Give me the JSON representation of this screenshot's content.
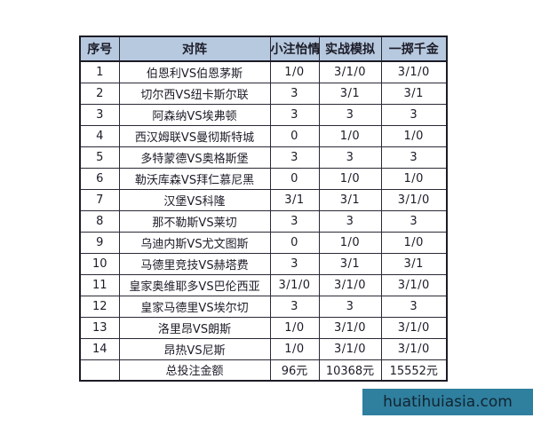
{
  "colors": {
    "page_bg": "#ffffff",
    "header_bg": "#b7c9df",
    "row_bg": "#ffffff",
    "grid_border": "#2a2a36",
    "outer_border": "#1c1c26",
    "text": "#1c1c28",
    "watermark_bg": "#2f7f9f",
    "watermark_text": "#112530"
  },
  "watermark": {
    "text": "huatihuiasia.com"
  },
  "table": {
    "headers": [
      "序号",
      "对阵",
      "小注怡情",
      "实战模拟",
      "一掷千金"
    ],
    "rows": [
      {
        "no": "1",
        "match": "伯恩利VS伯恩茅斯",
        "small": "1/0",
        "sim": "3/1/0",
        "big": "3/1/0"
      },
      {
        "no": "2",
        "match": "切尔西VS纽卡斯尔联",
        "small": "3",
        "sim": "3/1",
        "big": "3/1"
      },
      {
        "no": "3",
        "match": "阿森纳VS埃弗顿",
        "small": "3",
        "sim": "3",
        "big": "3"
      },
      {
        "no": "4",
        "match": "西汉姆联VS曼彻斯特城",
        "small": "0",
        "sim": "1/0",
        "big": "1/0"
      },
      {
        "no": "5",
        "match": "多特蒙德VS奥格斯堡",
        "small": "3",
        "sim": "3",
        "big": "3"
      },
      {
        "no": "6",
        "match": "勒沃库森VS拜仁慕尼黑",
        "small": "0",
        "sim": "1/0",
        "big": "1/0"
      },
      {
        "no": "7",
        "match": "汉堡VS科隆",
        "small": "3/1",
        "sim": "3/1",
        "big": "3/1/0"
      },
      {
        "no": "8",
        "match": "那不勒斯VS莱切",
        "small": "3",
        "sim": "3",
        "big": "3"
      },
      {
        "no": "9",
        "match": "乌迪内斯VS尤文图斯",
        "small": "0",
        "sim": "1/0",
        "big": "1/0"
      },
      {
        "no": "10",
        "match": "马德里竞技VS赫塔费",
        "small": "3",
        "sim": "3/1",
        "big": "3/1"
      },
      {
        "no": "11",
        "match": "皇家奥维耶多VS巴伦西亚",
        "small": "3/1/0",
        "sim": "3/1/0",
        "big": "3/1/0"
      },
      {
        "no": "12",
        "match": "皇家马德里VS埃尔切",
        "small": "3",
        "sim": "3",
        "big": "3"
      },
      {
        "no": "13",
        "match": "洛里昂VS朗斯",
        "small": "1/0",
        "sim": "3/1/0",
        "big": "3/1/0"
      },
      {
        "no": "14",
        "match": "昂热VS尼斯",
        "small": "1/0",
        "sim": "3/1/0",
        "big": "3/1/0"
      }
    ],
    "total_row": {
      "no": "",
      "label": "总投注金额",
      "small": "96元",
      "sim": "10368元",
      "big": "15552元"
    }
  },
  "chart_data": {
    "type": "table",
    "title": "",
    "columns": [
      "序号",
      "对阵",
      "小注怡情",
      "实战模拟",
      "一掷千金"
    ],
    "rows": [
      [
        "1",
        "伯恩利VS伯恩茅斯",
        "1/0",
        "3/1/0",
        "3/1/0"
      ],
      [
        "2",
        "切尔西VS纽卡斯尔联",
        "3",
        "3/1",
        "3/1"
      ],
      [
        "3",
        "阿森纳VS埃弗顿",
        "3",
        "3",
        "3"
      ],
      [
        "4",
        "西汉姆联VS曼彻斯特城",
        "0",
        "1/0",
        "1/0"
      ],
      [
        "5",
        "多特蒙德VS奥格斯堡",
        "3",
        "3",
        "3"
      ],
      [
        "6",
        "勒沃库森VS拜仁慕尼黑",
        "0",
        "1/0",
        "1/0"
      ],
      [
        "7",
        "汉堡VS科隆",
        "3/1",
        "3/1",
        "3/1/0"
      ],
      [
        "8",
        "那不勒斯VS莱切",
        "3",
        "3",
        "3"
      ],
      [
        "9",
        "乌迪内斯VS尤文图斯",
        "0",
        "1/0",
        "1/0"
      ],
      [
        "10",
        "马德里竞技VS赫塔费",
        "3",
        "3/1",
        "3/1"
      ],
      [
        "11",
        "皇家奥维耶多VS巴伦西亚",
        "3/1/0",
        "3/1/0",
        "3/1/0"
      ],
      [
        "12",
        "皇家马德里VS埃尔切",
        "3",
        "3",
        "3"
      ],
      [
        "13",
        "洛里昂VS朗斯",
        "1/0",
        "3/1/0",
        "3/1/0"
      ],
      [
        "14",
        "昂热VS尼斯",
        "1/0",
        "3/1/0",
        "3/1/0"
      ],
      [
        "",
        "总投注金额",
        "96元",
        "10368元",
        "15552元"
      ]
    ]
  }
}
